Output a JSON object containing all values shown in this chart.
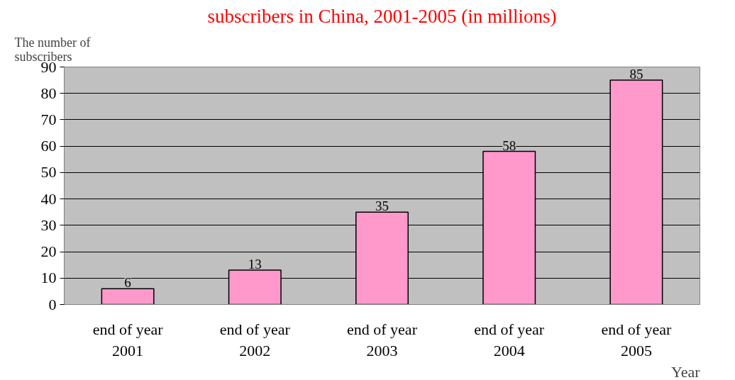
{
  "chart_data": {
    "type": "bar",
    "title": "subscribers in China, 2001-2005 (in millions)",
    "ylabel": "The number of subscribers",
    "xlabel": "Year",
    "categories": [
      "end of year 2001",
      "end of year 2002",
      "end of year 2003",
      "end of year 2004",
      "end of year 2005"
    ],
    "values": [
      6,
      13,
      35,
      58,
      85
    ],
    "color": "#ff99cc",
    "ylim": [
      0,
      90
    ],
    "yticks": [
      0,
      10,
      20,
      30,
      40,
      50,
      60,
      70,
      80,
      90
    ],
    "grid": "y",
    "data_labels": true
  }
}
